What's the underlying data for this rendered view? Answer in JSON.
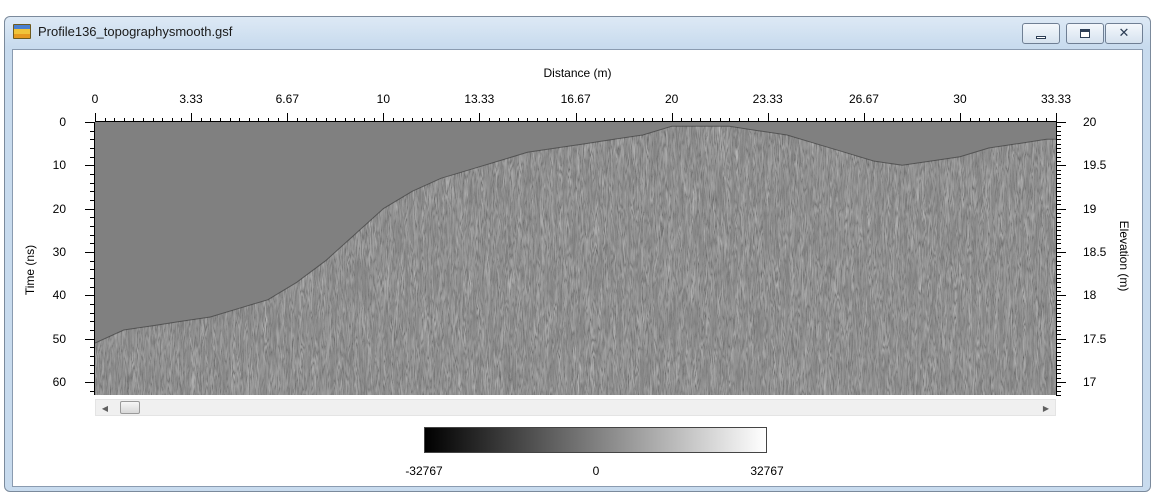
{
  "window": {
    "title": "Profile136_topographysmooth.gsf",
    "controls": {
      "minimize": "—",
      "restore": "□",
      "close": "✕"
    }
  },
  "chart_data": {
    "type": "heatmap",
    "description_type": "GPR radargram with topographic correction",
    "xlabel": "Distance (m)",
    "ylabel_left": "Time (ns)",
    "ylabel_right": "Elevation (m)",
    "x_ticks": [
      "0",
      "3.33",
      "6.67",
      "10",
      "13.33",
      "16.67",
      "20",
      "23.33",
      "26.67",
      "30",
      "33.33"
    ],
    "x_tick_values": [
      0,
      3.33,
      6.67,
      10,
      13.33,
      16.67,
      20,
      23.33,
      26.67,
      30,
      33.33
    ],
    "xlim": [
      0,
      33.33
    ],
    "y_left_ticks": [
      "0",
      "10",
      "20",
      "30",
      "40",
      "50",
      "60"
    ],
    "y_left_tick_values": [
      0,
      10,
      20,
      30,
      40,
      50,
      60
    ],
    "ylim_left": [
      0,
      63
    ],
    "y_right_ticks": [
      "20",
      "19.5",
      "19",
      "18.5",
      "18",
      "17.5",
      "17"
    ],
    "y_right_tick_values": [
      20,
      19.5,
      19,
      18.5,
      18,
      17.5,
      17
    ],
    "ylim_right": [
      20,
      16.85
    ],
    "surface_profile": {
      "distance_m": [
        0,
        1,
        2,
        3,
        4,
        5,
        6,
        7,
        8,
        9,
        10,
        11,
        12,
        13,
        14,
        15,
        16,
        17,
        18,
        19,
        20,
        21,
        22,
        23,
        24,
        25,
        26,
        27,
        28,
        29,
        30,
        31,
        32,
        33,
        33.33
      ],
      "time_ns": [
        51,
        48,
        47,
        46,
        45,
        43,
        41,
        37,
        32,
        26,
        20,
        16,
        13,
        11,
        9,
        7,
        6,
        5,
        4,
        3,
        1,
        1,
        1,
        2,
        3,
        5,
        7,
        9,
        10,
        9,
        8,
        6,
        5,
        4,
        4
      ]
    },
    "colormap": "grayscale",
    "color_scale": {
      "min": "-32767",
      "mid": "0",
      "max": "32767"
    },
    "colors": {
      "background": "#808080",
      "low": "#000000",
      "high": "#ffffff"
    }
  }
}
